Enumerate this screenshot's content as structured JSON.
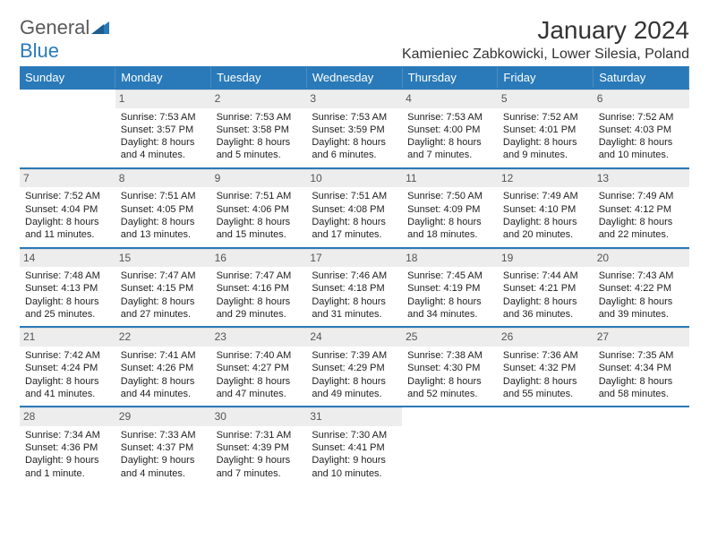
{
  "brand": {
    "text_a": "General",
    "text_b": "Blue"
  },
  "title": "January 2024",
  "location": "Kamieniec Zabkowicki, Lower Silesia, Poland",
  "header_bg": "#2a7ab9",
  "days": [
    "Sunday",
    "Monday",
    "Tuesday",
    "Wednesday",
    "Thursday",
    "Friday",
    "Saturday"
  ],
  "weeks": [
    [
      {
        "n": "",
        "lines": []
      },
      {
        "n": "1",
        "lines": [
          "Sunrise: 7:53 AM",
          "Sunset: 3:57 PM",
          "Daylight: 8 hours and 4 minutes."
        ]
      },
      {
        "n": "2",
        "lines": [
          "Sunrise: 7:53 AM",
          "Sunset: 3:58 PM",
          "Daylight: 8 hours and 5 minutes."
        ]
      },
      {
        "n": "3",
        "lines": [
          "Sunrise: 7:53 AM",
          "Sunset: 3:59 PM",
          "Daylight: 8 hours and 6 minutes."
        ]
      },
      {
        "n": "4",
        "lines": [
          "Sunrise: 7:53 AM",
          "Sunset: 4:00 PM",
          "Daylight: 8 hours and 7 minutes."
        ]
      },
      {
        "n": "5",
        "lines": [
          "Sunrise: 7:52 AM",
          "Sunset: 4:01 PM",
          "Daylight: 8 hours and 9 minutes."
        ]
      },
      {
        "n": "6",
        "lines": [
          "Sunrise: 7:52 AM",
          "Sunset: 4:03 PM",
          "Daylight: 8 hours and 10 minutes."
        ]
      }
    ],
    [
      {
        "n": "7",
        "lines": [
          "Sunrise: 7:52 AM",
          "Sunset: 4:04 PM",
          "Daylight: 8 hours and 11 minutes."
        ]
      },
      {
        "n": "8",
        "lines": [
          "Sunrise: 7:51 AM",
          "Sunset: 4:05 PM",
          "Daylight: 8 hours and 13 minutes."
        ]
      },
      {
        "n": "9",
        "lines": [
          "Sunrise: 7:51 AM",
          "Sunset: 4:06 PM",
          "Daylight: 8 hours and 15 minutes."
        ]
      },
      {
        "n": "10",
        "lines": [
          "Sunrise: 7:51 AM",
          "Sunset: 4:08 PM",
          "Daylight: 8 hours and 17 minutes."
        ]
      },
      {
        "n": "11",
        "lines": [
          "Sunrise: 7:50 AM",
          "Sunset: 4:09 PM",
          "Daylight: 8 hours and 18 minutes."
        ]
      },
      {
        "n": "12",
        "lines": [
          "Sunrise: 7:49 AM",
          "Sunset: 4:10 PM",
          "Daylight: 8 hours and 20 minutes."
        ]
      },
      {
        "n": "13",
        "lines": [
          "Sunrise: 7:49 AM",
          "Sunset: 4:12 PM",
          "Daylight: 8 hours and 22 minutes."
        ]
      }
    ],
    [
      {
        "n": "14",
        "lines": [
          "Sunrise: 7:48 AM",
          "Sunset: 4:13 PM",
          "Daylight: 8 hours and 25 minutes."
        ]
      },
      {
        "n": "15",
        "lines": [
          "Sunrise: 7:47 AM",
          "Sunset: 4:15 PM",
          "Daylight: 8 hours and 27 minutes."
        ]
      },
      {
        "n": "16",
        "lines": [
          "Sunrise: 7:47 AM",
          "Sunset: 4:16 PM",
          "Daylight: 8 hours and 29 minutes."
        ]
      },
      {
        "n": "17",
        "lines": [
          "Sunrise: 7:46 AM",
          "Sunset: 4:18 PM",
          "Daylight: 8 hours and 31 minutes."
        ]
      },
      {
        "n": "18",
        "lines": [
          "Sunrise: 7:45 AM",
          "Sunset: 4:19 PM",
          "Daylight: 8 hours and 34 minutes."
        ]
      },
      {
        "n": "19",
        "lines": [
          "Sunrise: 7:44 AM",
          "Sunset: 4:21 PM",
          "Daylight: 8 hours and 36 minutes."
        ]
      },
      {
        "n": "20",
        "lines": [
          "Sunrise: 7:43 AM",
          "Sunset: 4:22 PM",
          "Daylight: 8 hours and 39 minutes."
        ]
      }
    ],
    [
      {
        "n": "21",
        "lines": [
          "Sunrise: 7:42 AM",
          "Sunset: 4:24 PM",
          "Daylight: 8 hours and 41 minutes."
        ]
      },
      {
        "n": "22",
        "lines": [
          "Sunrise: 7:41 AM",
          "Sunset: 4:26 PM",
          "Daylight: 8 hours and 44 minutes."
        ]
      },
      {
        "n": "23",
        "lines": [
          "Sunrise: 7:40 AM",
          "Sunset: 4:27 PM",
          "Daylight: 8 hours and 47 minutes."
        ]
      },
      {
        "n": "24",
        "lines": [
          "Sunrise: 7:39 AM",
          "Sunset: 4:29 PM",
          "Daylight: 8 hours and 49 minutes."
        ]
      },
      {
        "n": "25",
        "lines": [
          "Sunrise: 7:38 AM",
          "Sunset: 4:30 PM",
          "Daylight: 8 hours and 52 minutes."
        ]
      },
      {
        "n": "26",
        "lines": [
          "Sunrise: 7:36 AM",
          "Sunset: 4:32 PM",
          "Daylight: 8 hours and 55 minutes."
        ]
      },
      {
        "n": "27",
        "lines": [
          "Sunrise: 7:35 AM",
          "Sunset: 4:34 PM",
          "Daylight: 8 hours and 58 minutes."
        ]
      }
    ],
    [
      {
        "n": "28",
        "lines": [
          "Sunrise: 7:34 AM",
          "Sunset: 4:36 PM",
          "Daylight: 9 hours and 1 minute."
        ]
      },
      {
        "n": "29",
        "lines": [
          "Sunrise: 7:33 AM",
          "Sunset: 4:37 PM",
          "Daylight: 9 hours and 4 minutes."
        ]
      },
      {
        "n": "30",
        "lines": [
          "Sunrise: 7:31 AM",
          "Sunset: 4:39 PM",
          "Daylight: 9 hours and 7 minutes."
        ]
      },
      {
        "n": "31",
        "lines": [
          "Sunrise: 7:30 AM",
          "Sunset: 4:41 PM",
          "Daylight: 9 hours and 10 minutes."
        ]
      },
      {
        "n": "",
        "lines": []
      },
      {
        "n": "",
        "lines": []
      },
      {
        "n": "",
        "lines": []
      }
    ]
  ]
}
